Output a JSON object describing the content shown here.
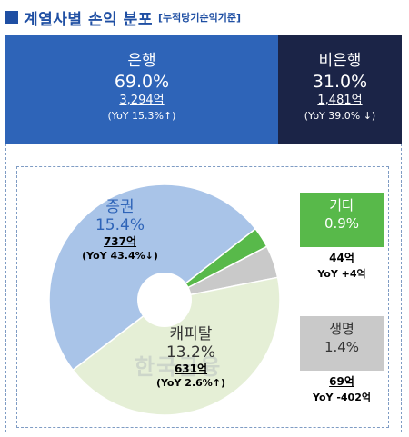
{
  "title": "계열사별 손익 분포",
  "subtitle": "[누적당기순익기준]",
  "boxes": {
    "bank": {
      "name": "은행",
      "pct": "69.0%",
      "amount": "3,294억",
      "yoy": "(YoY 15.3%↑)"
    },
    "nonbank": {
      "name": "비은행",
      "pct": "31.0%",
      "amount": "1,481억",
      "yoy": "(YoY 39.0% ↓)"
    }
  },
  "slices": {
    "securities": {
      "name": "증권",
      "pct": "15.4%",
      "amount": "737억",
      "yoy": "(YoY 43.4%↓)"
    },
    "capital": {
      "name": "캐피탈",
      "pct": "13.2%",
      "amount": "631억",
      "yoy": "(YoY 2.6%↑)"
    },
    "etc": {
      "name": "기타",
      "pct": "0.9%",
      "amount": "44억",
      "yoy": "YoY +4억"
    },
    "life": {
      "name": "생명",
      "pct": "1.4%",
      "amount": "69억",
      "yoy": "YoY -402억"
    }
  },
  "watermark": "한국금융",
  "colors": {
    "title": "#1f4fa3",
    "bank": "#2e64b8",
    "nonbank": "#1b2447",
    "securities": "#a9c4e8",
    "capital": "#e5efd6",
    "etc": "#58b94a",
    "life": "#c9c9c9"
  },
  "chart_data": {
    "type": "pie",
    "categories": [
      "증권",
      "캐피탈",
      "기타",
      "생명"
    ],
    "values": [
      15.4,
      13.2,
      0.9,
      1.4
    ],
    "amounts_billion_krw": [
      737,
      631,
      44,
      69
    ],
    "donut": true
  }
}
